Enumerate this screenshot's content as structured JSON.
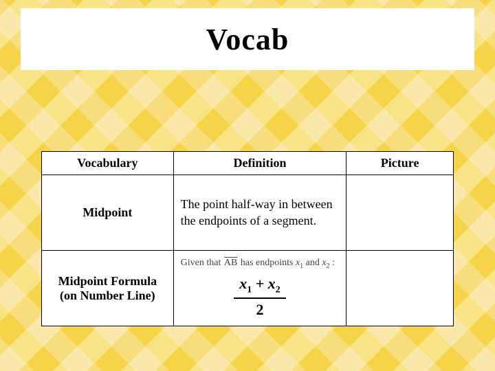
{
  "title": "Vocab",
  "columns": [
    "Vocabulary",
    "Definition",
    "Picture"
  ],
  "rows": [
    {
      "term": "Midpoint",
      "definition": "The point half-way in between the endpoints of a segment.",
      "picture": ""
    },
    {
      "term": "Midpoint Formula (on Number Line)",
      "formula": {
        "given_prefix": "Given that ",
        "segment": "AB",
        "given_mid": " has endpoints ",
        "var1": "x",
        "sub1": "1",
        "and": " and ",
        "var2": "x",
        "sub2": "2",
        "colon": " :",
        "num_x1": "x",
        "num_s1": "1",
        "plus": " + ",
        "num_x2": "x",
        "num_s2": "2",
        "den": "2"
      },
      "picture": ""
    }
  ],
  "style": {
    "bg_base": "#f5d547",
    "card_bg": "#ffffff",
    "border": "#000000",
    "title_fontsize": 44,
    "header_fontsize": 18,
    "body_fontsize": 18
  }
}
